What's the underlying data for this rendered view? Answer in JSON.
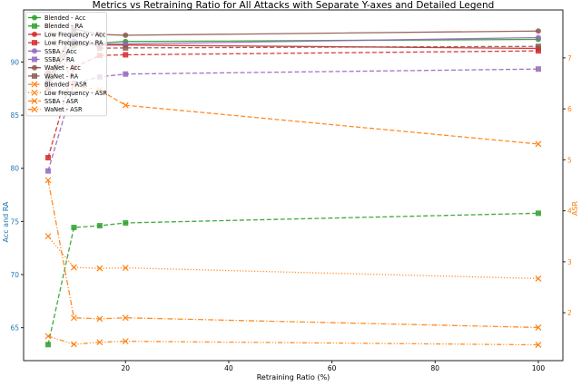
{
  "chart_data": {
    "type": "line",
    "title": "Metrics vs Retraining Ratio for All Attacks with Separate Y-axes and Detailed Legend",
    "xlabel": "Retraining Ratio (%)",
    "ylabel_left": "Acc and RA",
    "ylabel_right": "ASR",
    "x": [
      5,
      10,
      15,
      20,
      100
    ],
    "xlim": [
      0.25,
      104.75
    ],
    "xticks": [
      20,
      40,
      60,
      80,
      100
    ],
    "ylim_left": [
      61.9,
      94.9
    ],
    "yticks_left": [
      65,
      70,
      75,
      80,
      85,
      90
    ],
    "ylim_right": [
      1.06,
      7.94
    ],
    "yticks_right": [
      2,
      3,
      4,
      5,
      6,
      7
    ],
    "left_axis_color": "#1f77b4",
    "right_axis_color": "#ff7f0e",
    "grid": false,
    "legend_position": "top-left",
    "series": [
      {
        "name": "Blended - Acc",
        "axis": "left",
        "color": "#2ca02c",
        "style": "solid",
        "marker": "circle",
        "values": [
          88.5,
          91.5,
          91.8,
          91.93,
          92.13
        ]
      },
      {
        "name": "Blended - RA",
        "axis": "left",
        "color": "#2ca02c",
        "style": "dashed",
        "marker": "square",
        "values": [
          63.41,
          74.43,
          74.6,
          74.86,
          75.77
        ]
      },
      {
        "name": "Low Frequency - Acc",
        "axis": "left",
        "color": "#d62728",
        "style": "solid",
        "marker": "circle",
        "values": [
          89.0,
          91.8,
          91.6,
          91.6,
          91.28
        ]
      },
      {
        "name": "Low Frequency - RA",
        "axis": "left",
        "color": "#d62728",
        "style": "dashed",
        "marker": "square",
        "values": [
          81.0,
          89.5,
          90.62,
          90.68,
          91.05
        ]
      },
      {
        "name": "SSBA - Acc",
        "axis": "left",
        "color": "#9467bd",
        "style": "solid",
        "marker": "circle",
        "values": [
          88.0,
          92.0,
          91.7,
          91.7,
          92.3
        ]
      },
      {
        "name": "SSBA - RA",
        "axis": "left",
        "color": "#9467bd",
        "style": "dashed",
        "marker": "square",
        "values": [
          79.75,
          88.0,
          88.6,
          88.87,
          89.34
        ]
      },
      {
        "name": "WaNet - Acc",
        "axis": "left",
        "color": "#8c564b",
        "style": "solid",
        "marker": "circle",
        "values": [
          88.3,
          93.1,
          92.6,
          92.52,
          92.92
        ]
      },
      {
        "name": "WaNet - RA",
        "axis": "left",
        "color": "#8c564b",
        "style": "dashed",
        "marker": "square",
        "values": [
          87.5,
          93.0,
          91.3,
          91.33,
          91.47
        ]
      },
      {
        "name": "Blended - ASR",
        "axis": "right",
        "color": "#ff7f0e",
        "style": "dashed",
        "marker": "x",
        "values": [
          7.65,
          6.45,
          6.37,
          6.07,
          5.31
        ]
      },
      {
        "name": "Low Frequency - ASR",
        "axis": "right",
        "color": "#ff7f0e",
        "style": "dotted",
        "marker": "x",
        "values": [
          3.5,
          2.89,
          2.87,
          2.88,
          2.67
        ]
      },
      {
        "name": "SSBA - ASR",
        "axis": "right",
        "color": "#ff7f0e",
        "style": "dashdot",
        "marker": "x",
        "values": [
          4.6,
          1.9,
          1.88,
          1.9,
          1.71
        ]
      },
      {
        "name": "WaNet - ASR",
        "axis": "right",
        "color": "#ff7f0e",
        "style": "dashdotdot",
        "marker": "x",
        "values": [
          1.54,
          1.38,
          1.42,
          1.44,
          1.37
        ]
      }
    ]
  }
}
